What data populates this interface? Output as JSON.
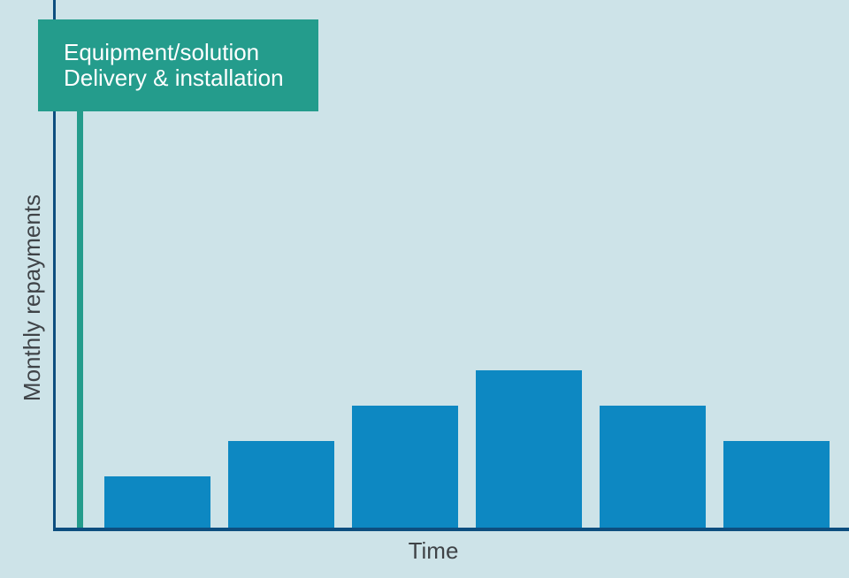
{
  "chart_data": {
    "type": "bar",
    "title": "",
    "xlabel": "Time",
    "ylabel": "Monthly repayments",
    "values": [
      3,
      5,
      7,
      9,
      7,
      5
    ],
    "ylim": [
      0,
      10
    ],
    "grid": false,
    "legend": "none",
    "tick_labels": "none",
    "annotation": {
      "lines": [
        "Equipment/solution",
        "Delivery & installation"
      ],
      "marker": "teal vertical line from callout box to x-axis near timeline start"
    },
    "colors": {
      "background": "#cde3e8",
      "bar": "#0d88c2",
      "axis": "#0d4e7f",
      "annotation_box": "#249c8c",
      "annotation_text": "#ffffff",
      "axis_label_text": "#3f4347"
    }
  }
}
